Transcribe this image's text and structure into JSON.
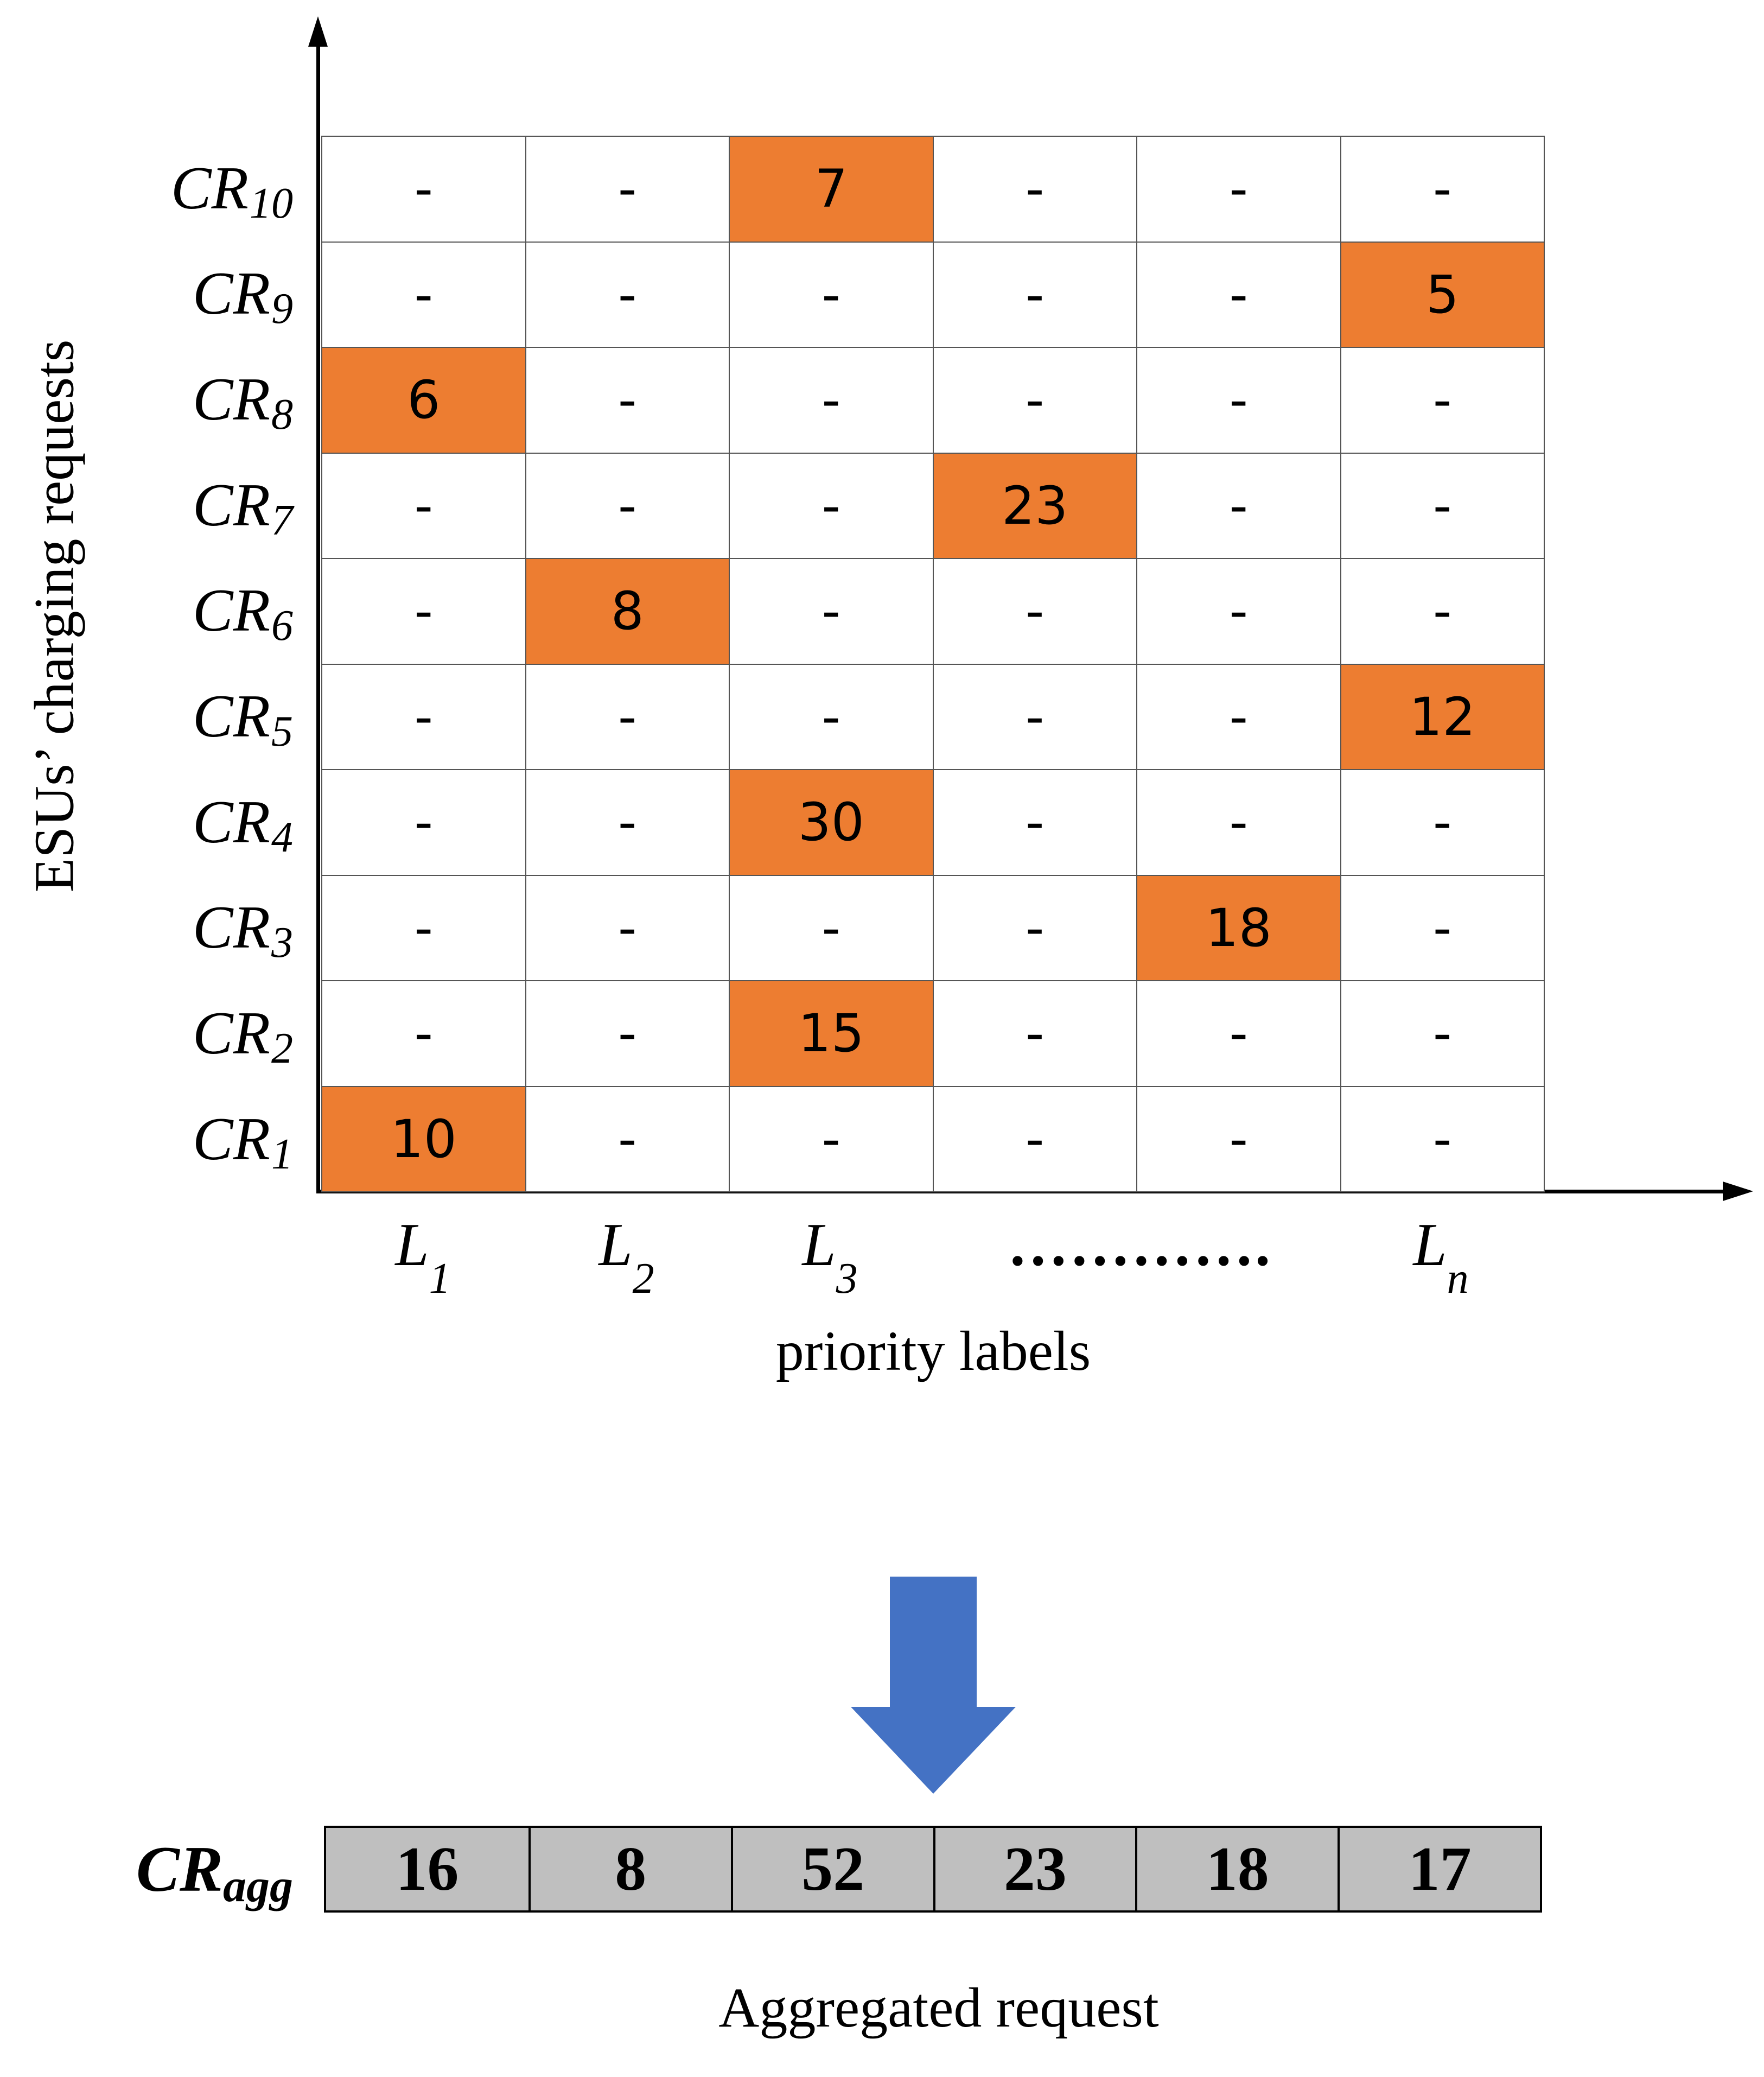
{
  "matrix": {
    "y_axis_title": "ESUs’ charging requests",
    "x_axis_title": "priority labels",
    "rows": [
      {
        "label": "CR",
        "sub": "10",
        "cells": [
          "-",
          "-",
          "7",
          "-",
          "-",
          "-"
        ]
      },
      {
        "label": "CR",
        "sub": "9",
        "cells": [
          "-",
          "-",
          "-",
          "-",
          "-",
          "5"
        ]
      },
      {
        "label": "CR",
        "sub": "8",
        "cells": [
          "6",
          "-",
          "-",
          "-",
          "-",
          "-"
        ]
      },
      {
        "label": "CR",
        "sub": "7",
        "cells": [
          "-",
          "-",
          "-",
          "23",
          "-",
          "-"
        ]
      },
      {
        "label": "CR",
        "sub": "6",
        "cells": [
          "-",
          "8",
          "-",
          "-",
          "-",
          "-"
        ]
      },
      {
        "label": "CR",
        "sub": "5",
        "cells": [
          "-",
          "-",
          "-",
          "-",
          "-",
          "12"
        ]
      },
      {
        "label": "CR",
        "sub": "4",
        "cells": [
          "-",
          "-",
          "30",
          "-",
          "-",
          "-"
        ]
      },
      {
        "label": "CR",
        "sub": "3",
        "cells": [
          "-",
          "-",
          "-",
          "-",
          "18",
          "-"
        ]
      },
      {
        "label": "CR",
        "sub": "2",
        "cells": [
          "-",
          "-",
          "15",
          "-",
          "-",
          "-"
        ]
      },
      {
        "label": "CR",
        "sub": "1",
        "cells": [
          "10",
          "-",
          "-",
          "-",
          "-",
          "-"
        ]
      }
    ],
    "column_labels": [
      {
        "label": "L",
        "sub": "1"
      },
      {
        "label": "L",
        "sub": "2"
      },
      {
        "label": "L",
        "sub": "3"
      },
      {
        "label": "L",
        "sub": "n"
      }
    ],
    "ellipsis": "………….",
    "highlight_color": "#ED7D31"
  },
  "arrow": {
    "icon": "down-arrow-icon",
    "color": "#4472C4"
  },
  "aggregate": {
    "label": "CR",
    "sub": "agg",
    "values": [
      "16",
      "8",
      "52",
      "23",
      "18",
      "17"
    ],
    "fill_color": "#BFBFBF",
    "title": "Aggregated request"
  }
}
